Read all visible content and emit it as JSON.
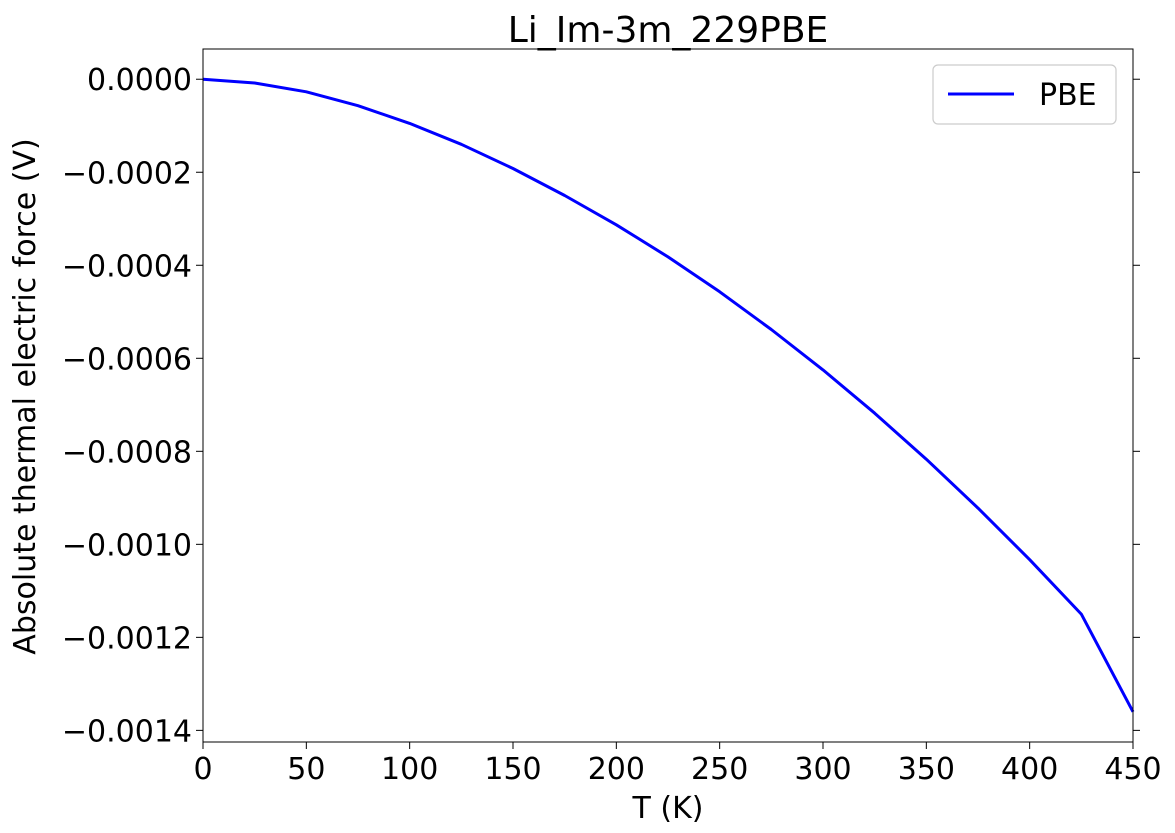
{
  "chart_data": {
    "type": "line",
    "title": "Li_Im-3m_229PBE",
    "xlabel": "T (K)",
    "ylabel": "Absolute thermal electric force (V)",
    "xlim": [
      0,
      450
    ],
    "ylim": [
      -0.001425,
      6.5e-05
    ],
    "xticks": [
      0,
      50,
      100,
      150,
      200,
      250,
      300,
      350,
      400,
      450
    ],
    "xtick_labels": [
      "0",
      "50",
      "100",
      "150",
      "200",
      "250",
      "300",
      "350",
      "400",
      "450"
    ],
    "yticks": [
      0.0,
      -0.0002,
      -0.0004,
      -0.0006,
      -0.0008,
      -0.001,
      -0.0012,
      -0.0014
    ],
    "ytick_labels": [
      "0.0000",
      "−0.0002",
      "−0.0004",
      "−0.0006",
      "−0.0008",
      "−0.0010",
      "−0.0012",
      "−0.0014"
    ],
    "grid": false,
    "legend_position": "top-right",
    "series": [
      {
        "name": "PBE",
        "color": "#0000ff",
        "x": [
          0,
          25,
          50,
          75,
          100,
          125,
          150,
          175,
          200,
          225,
          250,
          275,
          300,
          325,
          350,
          375,
          400,
          425,
          450
        ],
        "y": [
          0.0,
          -8e-06,
          -2.7e-05,
          -5.7e-05,
          -9.5e-05,
          -0.00014,
          -0.000192,
          -0.00025,
          -0.000313,
          -0.000382,
          -0.000457,
          -0.000538,
          -0.000625,
          -0.000718,
          -0.000817,
          -0.000922,
          -0.001033,
          -0.00115,
          -0.00136
        ]
      }
    ]
  }
}
